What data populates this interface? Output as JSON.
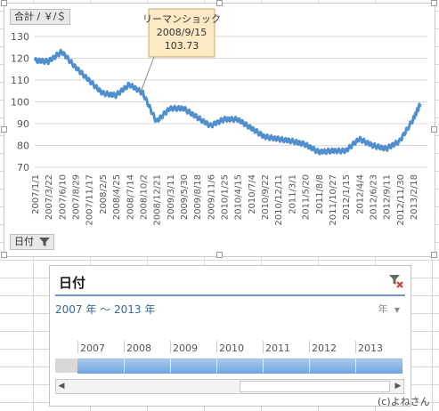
{
  "chart_data": {
    "type": "line",
    "title": "",
    "xlabel": "",
    "ylabel": "",
    "ylim": [
      70,
      130
    ],
    "y_ticks": [
      70,
      80,
      90,
      100,
      110,
      120,
      130
    ],
    "x_tick_labels": [
      "2007/1/1",
      "2007/3/22",
      "2007/6/10",
      "2007/8/29",
      "2007/11/17",
      "2008/2/5",
      "2008/4/25",
      "2008/7/14",
      "2008/10/2",
      "2008/12/21",
      "2009/3/11",
      "2009/5/30",
      "2009/8/18",
      "2009/11/6",
      "2010/1/25",
      "2010/4/15",
      "2010/7/4",
      "2010/9/22",
      "2010/12/11",
      "2011/3/1",
      "2011/5/20",
      "2011/8/8",
      "2011/10/27",
      "2012/1/15",
      "2012/4/4",
      "2012/6/23",
      "2012/9/11",
      "2012/11/30",
      "2013/2/18"
    ],
    "x": [
      "2007/1/1",
      "2007/3/22",
      "2007/6/10",
      "2007/8/29",
      "2007/11/17",
      "2008/2/5",
      "2008/4/25",
      "2008/7/14",
      "2008/10/2",
      "2008/12/21",
      "2009/3/11",
      "2009/5/30",
      "2009/8/18",
      "2009/11/6",
      "2010/1/25",
      "2010/4/15",
      "2010/7/4",
      "2010/9/22",
      "2010/12/11",
      "2011/3/1",
      "2011/5/20",
      "2011/8/8",
      "2011/10/27",
      "2012/1/15",
      "2012/4/4",
      "2012/6/23",
      "2012/9/11",
      "2012/11/30",
      "2013/2/18",
      "2013/4/1"
    ],
    "series": [
      {
        "values": [
          119,
          118.5,
          123,
          116,
          110,
          104,
          103,
          108,
          104,
          91,
          97,
          97,
          93,
          89,
          92,
          92,
          88,
          84,
          83,
          82,
          80.5,
          77,
          77.5,
          77.5,
          83,
          80,
          78.5,
          82,
          92,
          99
        ],
        "color": "#4f8fd0"
      }
    ],
    "annotation": {
      "title": "リーマンショック",
      "date": "2008/9/15",
      "value": "103.73"
    },
    "grid": true
  },
  "chart": {
    "field_button_values": "合計 / ￥/＄",
    "field_button_axis": "日付"
  },
  "slicer": {
    "title": "日付",
    "range_label": "2007 年 ～ 2013 年",
    "level_label": "年",
    "years": [
      "2007",
      "2008",
      "2009",
      "2010",
      "2011",
      "2012",
      "2013"
    ]
  },
  "credit": "(c)よねさん",
  "colors": {
    "line": "#4f8fd0",
    "timeline": "#6ea5e0",
    "callout_bg": "#fde9c3"
  }
}
